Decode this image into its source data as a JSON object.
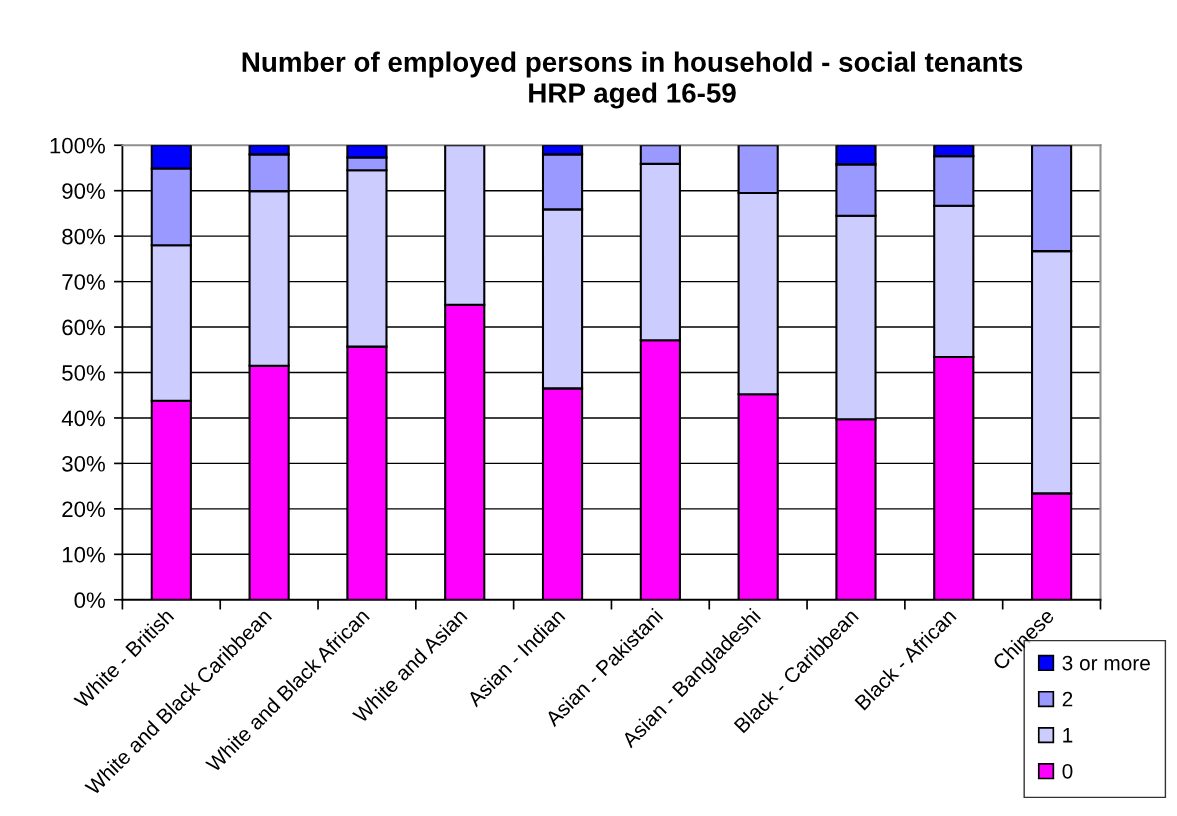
{
  "chart_data": {
    "type": "bar",
    "title": "Number of employed persons in household - social tenants\nHRP aged 16-59",
    "categories": [
      "White - British",
      "White and Black Caribbean",
      "White and Black African",
      "White and Asian",
      "Asian - Indian",
      "Asian - Pakistani",
      "Asian - Bangladeshi",
      "Black - Caribbean",
      "Black - African",
      "Chinese"
    ],
    "series": [
      {
        "name": "0",
        "color": "#ff00ff",
        "values": [
          43.8,
          51.5,
          55.7,
          64.9,
          46.5,
          57.1,
          45.2,
          39.7,
          53.4,
          23.4
        ]
      },
      {
        "name": "1",
        "color": "#ccccff",
        "values": [
          34.2,
          38.4,
          38.8,
          35.1,
          39.4,
          38.8,
          44.3,
          44.8,
          33.3,
          53.3
        ]
      },
      {
        "name": "2",
        "color": "#9999ff",
        "values": [
          16.9,
          8.1,
          2.8,
          0,
          12.1,
          4.1,
          10.5,
          11.3,
          10.9,
          23.3
        ]
      },
      {
        "name": "3 or more",
        "color": "#0000ff",
        "values": [
          5.1,
          2.0,
          2.7,
          0,
          2.0,
          0,
          0,
          4.2,
          2.4,
          0
        ]
      }
    ],
    "stacked": true,
    "ylim": [
      0,
      100
    ],
    "yticks": [
      {
        "value": 0,
        "label": "0%"
      },
      {
        "value": 10,
        "label": "10%"
      },
      {
        "value": 20,
        "label": "20%"
      },
      {
        "value": 30,
        "label": "30%"
      },
      {
        "value": 40,
        "label": "40%"
      },
      {
        "value": 50,
        "label": "50%"
      },
      {
        "value": 60,
        "label": "60%"
      },
      {
        "value": 70,
        "label": "70%"
      },
      {
        "value": 80,
        "label": "80%"
      },
      {
        "value": 90,
        "label": "90%"
      },
      {
        "value": 100,
        "label": "100%"
      }
    ],
    "grid": "y",
    "legend": "bottom right"
  }
}
